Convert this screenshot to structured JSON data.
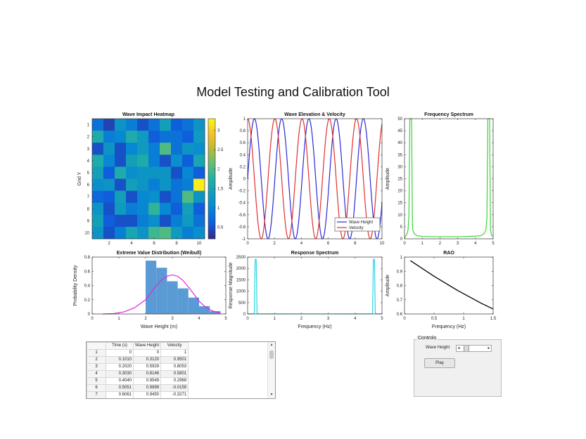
{
  "figure": {
    "title": "Model Testing and Calibration Tool"
  },
  "chart_data": [
    {
      "id": "heatmap",
      "type": "heatmap",
      "title": "Wave Impact Heatmap",
      "xlabel": "",
      "ylabel": "Grid Y",
      "x_ticks": [
        "2",
        "4",
        "6",
        "8",
        "10"
      ],
      "y_ticks": [
        "1",
        "2",
        "3",
        "4",
        "5",
        "6",
        "7",
        "8",
        "9",
        "10"
      ],
      "colorbar_ticks": [
        "0.5",
        "1",
        "1.5",
        "2",
        "2.5",
        "3"
      ],
      "clim": [
        0.2,
        3.3
      ],
      "colormap": "parula",
      "values": [
        [
          0.8,
          0.4,
          1.2,
          0.9,
          0.5,
          0.8,
          1.4,
          0.6,
          0.8,
          1.2
        ],
        [
          1.6,
          0.9,
          1.0,
          1.6,
          1.3,
          0.6,
          0.8,
          0.8,
          0.6,
          1.3
        ],
        [
          0.5,
          1.2,
          0.5,
          1.0,
          1.3,
          0.9,
          2.0,
          0.8,
          1.2,
          1.1
        ],
        [
          1.6,
          1.0,
          0.5,
          1.4,
          1.6,
          0.9,
          0.5,
          1.1,
          0.6,
          1.5
        ],
        [
          1.4,
          0.6,
          1.6,
          1.1,
          1.2,
          1.2,
          1.2,
          0.5,
          1.0,
          0.6
        ],
        [
          1.1,
          1.2,
          0.5,
          1.4,
          1.2,
          0.9,
          1.2,
          0.8,
          0.9,
          3.2
        ],
        [
          0.7,
          0.6,
          1.4,
          0.5,
          1.0,
          1.1,
          0.5,
          0.8,
          2.0,
          1.2
        ],
        [
          1.2,
          0.5,
          1.3,
          0.9,
          1.0,
          1.8,
          1.0,
          0.6,
          1.4,
          0.6
        ],
        [
          1.4,
          0.6,
          0.5,
          0.5,
          0.9,
          1.1,
          0.5,
          0.9,
          1.3,
          0.8
        ],
        [
          1.2,
          0.5,
          0.9,
          1.5,
          1.2,
          1.9,
          2.0,
          1.3,
          0.9,
          1.1
        ]
      ]
    },
    {
      "id": "elevation",
      "type": "line",
      "title": "Wave Elevation & Velocity",
      "xlabel": "",
      "ylabel": "Amplitude",
      "xlim": [
        0,
        10
      ],
      "ylim": [
        -1,
        1
      ],
      "x_ticks": [
        "0",
        "2",
        "4",
        "6",
        "8",
        "10"
      ],
      "y_ticks": [
        "-1",
        "-0.8",
        "-0.6",
        "-0.4",
        "-0.2",
        "0",
        "0.2",
        "0.4",
        "0.6",
        "0.8",
        "1"
      ],
      "series": [
        {
          "name": "Wave Height",
          "color": "#2a2ad6",
          "func": "sin",
          "omega": 3.1
        },
        {
          "name": "Velocity",
          "color": "#e03030",
          "func": "cos",
          "omega": 3.1
        }
      ],
      "legend": "bottom-right"
    },
    {
      "id": "freqspec",
      "type": "line",
      "title": "Frequency Spectrum",
      "xlabel": "",
      "ylabel": "Amplitude",
      "xlim": [
        0,
        5
      ],
      "ylim": [
        0,
        50
      ],
      "x_ticks": [
        "0",
        "1",
        "2",
        "3",
        "4",
        "5"
      ],
      "y_ticks": [
        "0",
        "5",
        "10",
        "15",
        "20",
        "25",
        "30",
        "35",
        "40",
        "45",
        "50"
      ],
      "color": "#3bd43b",
      "x": [
        0.0,
        0.05,
        0.1,
        0.15,
        0.2,
        0.25,
        0.3,
        0.35,
        0.4,
        0.45,
        0.5,
        0.55,
        0.6,
        0.65,
        0.7,
        0.8,
        1.0,
        1.5,
        2.0,
        2.5,
        3.0,
        3.5,
        4.0,
        4.3,
        4.35,
        4.4,
        4.45,
        4.5,
        4.55,
        4.6,
        4.65,
        4.7,
        4.75,
        4.8,
        4.85,
        4.9,
        4.95
      ],
      "y": [
        0.4,
        1.0,
        1.5,
        2.2,
        3.8,
        10,
        50,
        50,
        50,
        4.0,
        3.0,
        2.2,
        1.8,
        1.6,
        1.4,
        1.2,
        1.0,
        0.9,
        0.9,
        0.9,
        0.9,
        1.0,
        1.1,
        1.3,
        1.5,
        1.7,
        2.0,
        2.3,
        3.0,
        4.2,
        9,
        50,
        50,
        50,
        3.8,
        1.8,
        1.0
      ]
    },
    {
      "id": "weibull",
      "type": "bar",
      "title": "Extreme Value Distribution (Weibull)",
      "xlabel": "Wave Height (m)",
      "ylabel": "Probability Density",
      "xlim": [
        0,
        5
      ],
      "ylim": [
        0,
        0.8
      ],
      "x_ticks": [
        "0",
        "1",
        "2",
        "3",
        "4",
        "5"
      ],
      "y_ticks": [
        "0",
        "0.2",
        "0.4",
        "0.6",
        "0.8"
      ],
      "bar_color": "#5b9bd5",
      "bins": [
        {
          "x0": 2.0,
          "x1": 2.4,
          "value": 0.75
        },
        {
          "x0": 2.4,
          "x1": 2.8,
          "value": 0.65
        },
        {
          "x0": 2.8,
          "x1": 3.2,
          "value": 0.46
        },
        {
          "x0": 3.2,
          "x1": 3.6,
          "value": 0.36
        },
        {
          "x0": 3.6,
          "x1": 4.0,
          "value": 0.23
        },
        {
          "x0": 4.0,
          "x1": 4.4,
          "value": 0.11
        },
        {
          "x0": 4.4,
          "x1": 4.8,
          "value": 0.04
        }
      ],
      "curve_color": "#e026d8",
      "curve": {
        "x": [
          0.4,
          0.8,
          1.2,
          1.6,
          2.0,
          2.2,
          2.4,
          2.6,
          2.8,
          3.0,
          3.2,
          3.4,
          3.6,
          3.8,
          4.0,
          4.2,
          4.4,
          4.6,
          4.8
        ],
        "y": [
          0.0,
          0.005,
          0.03,
          0.09,
          0.2,
          0.3,
          0.4,
          0.48,
          0.53,
          0.55,
          0.53,
          0.47,
          0.38,
          0.28,
          0.18,
          0.11,
          0.06,
          0.03,
          0.015
        ]
      }
    },
    {
      "id": "response",
      "type": "line",
      "title": "Response Spectrum",
      "xlabel": "Frequency (Hz)",
      "ylabel": "Response Magnitude",
      "xlim": [
        0,
        5
      ],
      "ylim": [
        0,
        2500
      ],
      "x_ticks": [
        "0",
        "1",
        "2",
        "3",
        "4",
        "5"
      ],
      "y_ticks": [
        "0",
        "500",
        "1000",
        "1500",
        "2000",
        "2500"
      ],
      "color": "#22d6e6",
      "x": [
        0.0,
        0.2,
        0.25,
        0.28,
        0.3,
        0.32,
        0.35,
        0.4,
        1.0,
        2.0,
        3.0,
        4.0,
        4.6,
        4.65,
        4.68,
        4.7,
        4.72,
        4.75,
        4.8,
        5.0
      ],
      "y": [
        8,
        10,
        30,
        2400,
        2400,
        2400,
        30,
        10,
        3,
        2,
        2,
        3,
        10,
        30,
        2400,
        2400,
        2400,
        30,
        10,
        8
      ]
    },
    {
      "id": "rao",
      "type": "line",
      "title": "RAO",
      "xlabel": "Frequency (Hz)",
      "ylabel": "Amplitude",
      "xlim": [
        0,
        1.5
      ],
      "ylim": [
        0.6,
        1.0
      ],
      "x_ticks": [
        "0",
        "0.5",
        "1",
        "1.5"
      ],
      "y_ticks": [
        "0.6",
        "0.7",
        "0.8",
        "0.9",
        "1"
      ],
      "color": "#000000",
      "x": [
        0.1,
        0.3,
        0.5,
        0.7,
        0.9,
        1.1,
        1.3,
        1.5
      ],
      "y": [
        0.975,
        0.92,
        0.865,
        0.815,
        0.765,
        0.72,
        0.675,
        0.635
      ]
    }
  ],
  "table": {
    "columns": [
      "Time (s)",
      "Wave Height",
      "Velocity"
    ],
    "rows": [
      [
        "1",
        "0",
        "0",
        "1"
      ],
      [
        "2",
        "0.1010",
        "0.3120",
        "0.9501"
      ],
      [
        "3",
        "0.2020",
        "0.5929",
        "0.8053"
      ],
      [
        "4",
        "0.3030",
        "0.8146",
        "0.5801"
      ],
      [
        "5",
        "0.4040",
        "0.9549",
        "0.2969"
      ],
      [
        "6",
        "0.5051",
        "0.9999",
        "-0.0159"
      ],
      [
        "7",
        "0.6061",
        "0.9450",
        "-0.3271"
      ]
    ],
    "scroll_up_icon": "▴",
    "scroll_down_icon": "▾"
  },
  "controls": {
    "title": "Controls",
    "slider_label": "Wave Height",
    "slider_value": 0.15,
    "slider_left_icon": "◂",
    "slider_right_icon": "▸",
    "play_label": "Play"
  }
}
